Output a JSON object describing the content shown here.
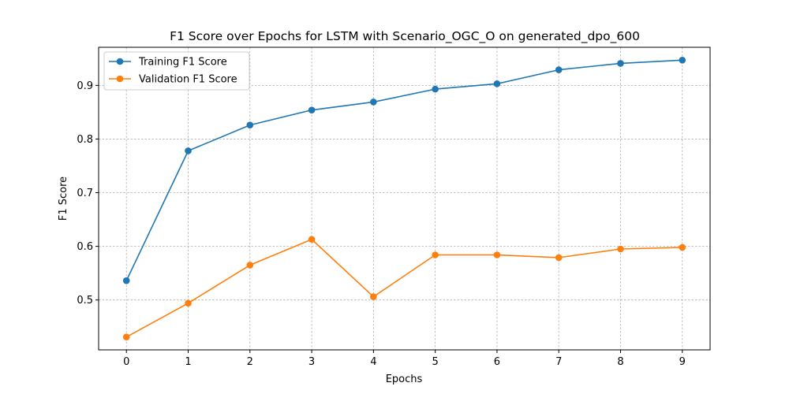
{
  "chart_data": {
    "type": "line",
    "title": "F1 Score over Epochs for LSTM with Scenario_OGC_O on generated_dpo_600",
    "xlabel": "Epochs",
    "ylabel": "F1 Score",
    "x": [
      0,
      1,
      2,
      3,
      4,
      5,
      6,
      7,
      8,
      9
    ],
    "xticks": [
      "0",
      "1",
      "2",
      "3",
      "4",
      "5",
      "6",
      "7",
      "8",
      "9"
    ],
    "yticks": [
      "0.5",
      "0.6",
      "0.7",
      "0.8",
      "0.9"
    ],
    "ytick_values": [
      0.5,
      0.6,
      0.7,
      0.8,
      0.9
    ],
    "xlim": [
      -0.45,
      9.45
    ],
    "ylim": [
      0.407,
      0.971
    ],
    "grid": true,
    "legend_position": "top-left",
    "series": [
      {
        "name": "Training F1 Score",
        "color": "#1f77b4",
        "marker": "circle",
        "values": [
          0.536,
          0.778,
          0.826,
          0.854,
          0.869,
          0.893,
          0.903,
          0.929,
          0.941,
          0.947
        ]
      },
      {
        "name": "Validation F1 Score",
        "color": "#ff7f0e",
        "marker": "circle",
        "values": [
          0.431,
          0.494,
          0.565,
          0.613,
          0.506,
          0.584,
          0.584,
          0.579,
          0.595,
          0.598
        ]
      }
    ]
  }
}
